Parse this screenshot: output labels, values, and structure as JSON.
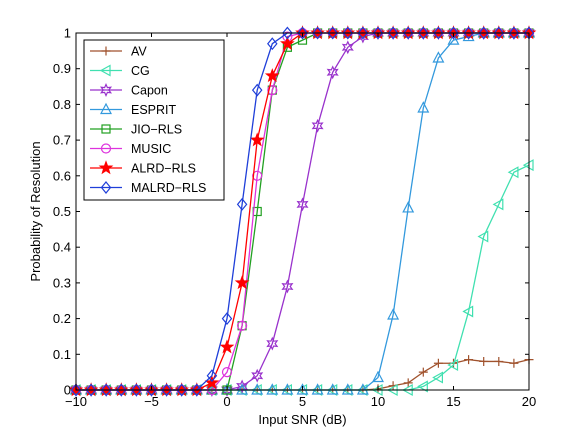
{
  "chart_data": {
    "type": "line",
    "title": "",
    "xlabel": "Input SNR (dB)",
    "ylabel": "Probability of Resolution",
    "xlim": [
      -10,
      20
    ],
    "ylim": [
      0,
      1
    ],
    "xticks": [
      -10,
      -5,
      0,
      5,
      10,
      15,
      20
    ],
    "yticks": [
      0,
      0.1,
      0.2,
      0.3,
      0.4,
      0.5,
      0.6,
      0.7,
      0.8,
      0.9,
      1
    ],
    "xtick_labels": [
      "−10",
      "−5",
      "0",
      "5",
      "10",
      "15",
      "20"
    ],
    "ytick_labels": [
      "0",
      "0.1",
      "0.2",
      "0.3",
      "0.4",
      "0.5",
      "0.6",
      "0.7",
      "0.8",
      "0.9",
      "1"
    ],
    "grid": false,
    "legend_position": "top-left",
    "x": [
      -10,
      -9,
      -8,
      -7,
      -6,
      -5,
      -4,
      -3,
      -2,
      -1,
      0,
      1,
      2,
      3,
      4,
      5,
      6,
      7,
      8,
      9,
      10,
      11,
      12,
      13,
      14,
      15,
      16,
      17,
      18,
      19,
      20
    ],
    "series": [
      {
        "name": "AV",
        "color": "#a0522d",
        "marker": "plus",
        "values": [
          0,
          0,
          0,
          0,
          0,
          0,
          0,
          0,
          0,
          0,
          0,
          0,
          0,
          0,
          0,
          0,
          0,
          0,
          0,
          0,
          0.003,
          0.012,
          0.02,
          0.05,
          0.075,
          0.075,
          0.085,
          0.08,
          0.08,
          0.075,
          0.085
        ]
      },
      {
        "name": "CG",
        "color": "#40e0b0",
        "marker": "triangle-left",
        "values": [
          0,
          0,
          0,
          0,
          0,
          0,
          0,
          0,
          0,
          0,
          0,
          0,
          0,
          0,
          0,
          0,
          0,
          0,
          0,
          0,
          0,
          0,
          0,
          0.01,
          0.035,
          0.07,
          0.22,
          0.43,
          0.52,
          0.61,
          0.63
        ]
      },
      {
        "name": "Capon",
        "color": "#9932cc",
        "marker": "star6",
        "values": [
          0,
          0,
          0,
          0,
          0,
          0,
          0,
          0,
          0,
          0,
          0,
          0.01,
          0.04,
          0.13,
          0.29,
          0.52,
          0.74,
          0.89,
          0.96,
          0.99,
          1,
          1,
          1,
          1,
          1,
          1,
          1,
          1,
          1,
          1,
          1
        ]
      },
      {
        "name": "ESPRIT",
        "color": "#3399dd",
        "marker": "triangle-up",
        "values": [
          0,
          0,
          0,
          0,
          0,
          0,
          0,
          0,
          0,
          0,
          0,
          0,
          0,
          0,
          0,
          0,
          0,
          0,
          0,
          0,
          0.035,
          0.21,
          0.51,
          0.79,
          0.93,
          0.98,
          0.99,
          1,
          1,
          1,
          1
        ]
      },
      {
        "name": "JIO−RLS",
        "color": "#22a022",
        "marker": "square",
        "values": [
          0,
          0,
          0,
          0,
          0,
          0,
          0,
          0,
          0,
          0,
          0,
          0.18,
          0.5,
          0.84,
          0.96,
          0.98,
          1,
          1,
          1,
          1,
          1,
          1,
          1,
          1,
          1,
          1,
          1,
          1,
          1,
          1,
          1
        ]
      },
      {
        "name": "MUSIC",
        "color": "#dd33dd",
        "marker": "circle",
        "values": [
          0,
          0,
          0,
          0,
          0,
          0,
          0,
          0,
          0,
          0,
          0.05,
          0.18,
          0.6,
          0.84,
          0.99,
          1,
          1,
          1,
          1,
          1,
          1,
          1,
          1,
          1,
          1,
          1,
          1,
          1,
          1,
          1,
          1
        ]
      },
      {
        "name": "ALRD−RLS",
        "color": "#ff0000",
        "marker": "star5",
        "values": [
          0,
          0,
          0,
          0,
          0,
          0,
          0,
          0,
          0,
          0.02,
          0.12,
          0.3,
          0.7,
          0.88,
          0.97,
          1,
          1,
          1,
          1,
          1,
          1,
          1,
          1,
          1,
          1,
          1,
          1,
          1,
          1,
          1,
          1
        ]
      },
      {
        "name": "MALRD−RLS",
        "color": "#1f3fd9",
        "marker": "diamond",
        "values": [
          0,
          0,
          0,
          0,
          0,
          0,
          0,
          0,
          0,
          0.04,
          0.2,
          0.52,
          0.84,
          0.97,
          1,
          1,
          1,
          1,
          1,
          1,
          1,
          1,
          1,
          1,
          1,
          1,
          1,
          1,
          1,
          1,
          1
        ]
      }
    ]
  }
}
